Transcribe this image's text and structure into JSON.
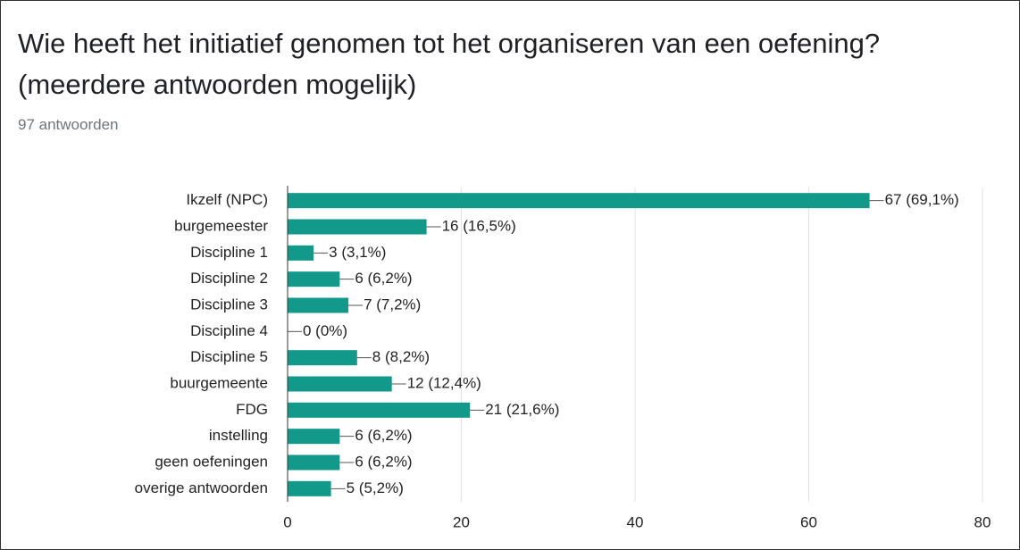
{
  "chart_data": {
    "type": "bar",
    "orientation": "horizontal",
    "title": "Wie heeft het initiatief genomen tot het organiseren van een oefening? (meerdere antwoorden mogelijk)",
    "subtitle": "97 antwoorden",
    "categories": [
      "Ikzelf (NPC)",
      "burgemeester",
      "Discipline 1",
      "Discipline 2",
      "Discipline 3",
      "Discipline 4",
      "Discipline 5",
      "buurgemeente",
      "FDG",
      "instelling",
      "geen oefeningen",
      "overige antwoorden"
    ],
    "values": [
      67,
      16,
      3,
      6,
      7,
      0,
      8,
      12,
      21,
      6,
      6,
      5
    ],
    "value_labels": [
      "67 (69,1%)",
      "16 (16,5%)",
      "3 (3,1%)",
      "6 (6,2%)",
      "7 (7,2%)",
      "0 (0%)",
      "8 (8,2%)",
      "12 (12,4%)",
      "21 (21,6%)",
      "6 (6,2%)",
      "6 (6,2%)",
      "5 (5,2%)"
    ],
    "color": "#12998a",
    "xlim": [
      0,
      80
    ],
    "xticks": [
      0,
      20,
      40,
      60,
      80
    ],
    "grid": true
  }
}
